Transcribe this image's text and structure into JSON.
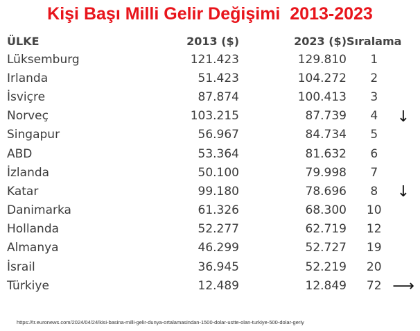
{
  "title": "Kişi Başı Milli Gelir Değişimi  2013-2023",
  "table": {
    "headers": {
      "country": "ÜLKE",
      "y2013": "2013 ($)",
      "y2023": "2023 ($)",
      "rank": "Sıralama"
    },
    "rows": [
      {
        "country": "Lüksemburg",
        "y2013": "121.423",
        "y2023": "129.810",
        "rank": "1"
      },
      {
        "country": "Irlanda",
        "y2013": "51.423",
        "y2023": "104.272",
        "rank": "2"
      },
      {
        "country": "İsviçre",
        "y2013": "87.874",
        "y2023": "100.413",
        "rank": "3"
      },
      {
        "country": "Norveç",
        "y2013": "103.215",
        "y2023": "87.739",
        "rank": "4"
      },
      {
        "country": "Singapur",
        "y2013": "56.967",
        "y2023": "84.734",
        "rank": "5"
      },
      {
        "country": "ABD",
        "y2013": "53.364",
        "y2023": "81.632",
        "rank": "6"
      },
      {
        "country": "İzlanda",
        "y2013": "50.100",
        "y2023": "79.998",
        "rank": "7"
      },
      {
        "country": "Katar",
        "y2013": "99.180",
        "y2023": "78.696",
        "rank": "8"
      },
      {
        "country": "Danimarka",
        "y2013": "61.326",
        "y2023": "68.300",
        "rank": "10"
      },
      {
        "country": "Hollanda",
        "y2013": "52.277",
        "y2023": "62.719",
        "rank": "12"
      },
      {
        "country": "Almanya",
        "y2013": "46.299",
        "y2023": "52.727",
        "rank": "19"
      },
      {
        "country": "İsrail",
        "y2013": "36.945",
        "y2023": "52.219",
        "rank": "20"
      },
      {
        "country": "Türkiye",
        "y2013": "12.489",
        "y2023": "12.849",
        "rank": "72"
      }
    ]
  },
  "arrows": [
    {
      "row": 3,
      "icon": "arrow-down-icon",
      "glyph": "↓"
    },
    {
      "row": 7,
      "icon": "arrow-down-icon",
      "glyph": "↓"
    },
    {
      "row": 12,
      "icon": "arrow-right-icon",
      "glyph": "⟶"
    }
  ],
  "source": "https://tr.euronews.com/2024/04/24/kisi-basina-milli-gelir-dunya-ortalamasindan-1500-dolar-ustte-olan-turkiye-500-dolar-geriy"
}
